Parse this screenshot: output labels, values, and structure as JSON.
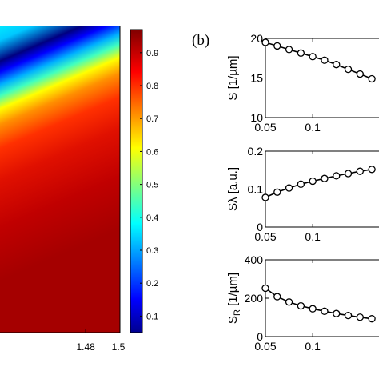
{
  "chart_data": [
    {
      "type": "heatmap",
      "title": "",
      "x_ticks": [
        "1.48",
        "1.5"
      ],
      "x_range": [
        1.43,
        1.5
      ],
      "note_visible": "color map with a diagonal low-value band",
      "colormap": "jet",
      "colorbar": {
        "ticks": [
          "0.1",
          "0.2",
          "0.3",
          "0.4",
          "0.5",
          "0.6",
          "0.7",
          "0.8",
          "0.9"
        ],
        "range": [
          0.05,
          0.97
        ]
      }
    },
    {
      "type": "line",
      "panel_label": "(b)",
      "subplots": [
        {
          "ylabel": "S [1/µm]",
          "ylim": [
            10,
            20
          ],
          "yticks": [
            "10",
            "15",
            "20"
          ],
          "xlim": [
            0.05,
            0.17
          ],
          "xticks": [
            "0.05",
            "0.1"
          ],
          "x": [
            0.05,
            0.0625,
            0.075,
            0.0875,
            0.1,
            0.1125,
            0.125,
            0.1375,
            0.15,
            0.1625
          ],
          "values": [
            19.5,
            19.05,
            18.6,
            18.15,
            17.7,
            17.25,
            16.7,
            16.1,
            15.5,
            14.9
          ]
        },
        {
          "ylabel": "Sλ [a.u.]",
          "ylim": [
            0,
            0.2
          ],
          "yticks": [
            "0",
            "0.1",
            "0.2"
          ],
          "xlim": [
            0.05,
            0.17
          ],
          "xticks": [
            "0.05",
            "0.1"
          ],
          "x": [
            0.05,
            0.0625,
            0.075,
            0.0875,
            0.1,
            0.1125,
            0.125,
            0.1375,
            0.15,
            0.1625
          ],
          "values": [
            0.078,
            0.092,
            0.103,
            0.113,
            0.121,
            0.128,
            0.135,
            0.141,
            0.147,
            0.152
          ]
        },
        {
          "ylabel": "S_R [1/µm]",
          "ylabel_main": "S",
          "ylabel_sub": "R",
          "ylabel_unit": " [1/µm]",
          "ylim": [
            0,
            400
          ],
          "yticks": [
            "0",
            "200",
            "400"
          ],
          "xlim": [
            0.05,
            0.17
          ],
          "xticks": [
            "0.05",
            "0.1"
          ],
          "x": [
            0.05,
            0.0625,
            0.075,
            0.0875,
            0.1,
            0.1125,
            0.125,
            0.1375,
            0.15,
            0.1625
          ],
          "values": [
            252,
            208,
            180,
            160,
            145,
            132,
            120,
            110,
            101,
            93
          ]
        }
      ]
    }
  ]
}
